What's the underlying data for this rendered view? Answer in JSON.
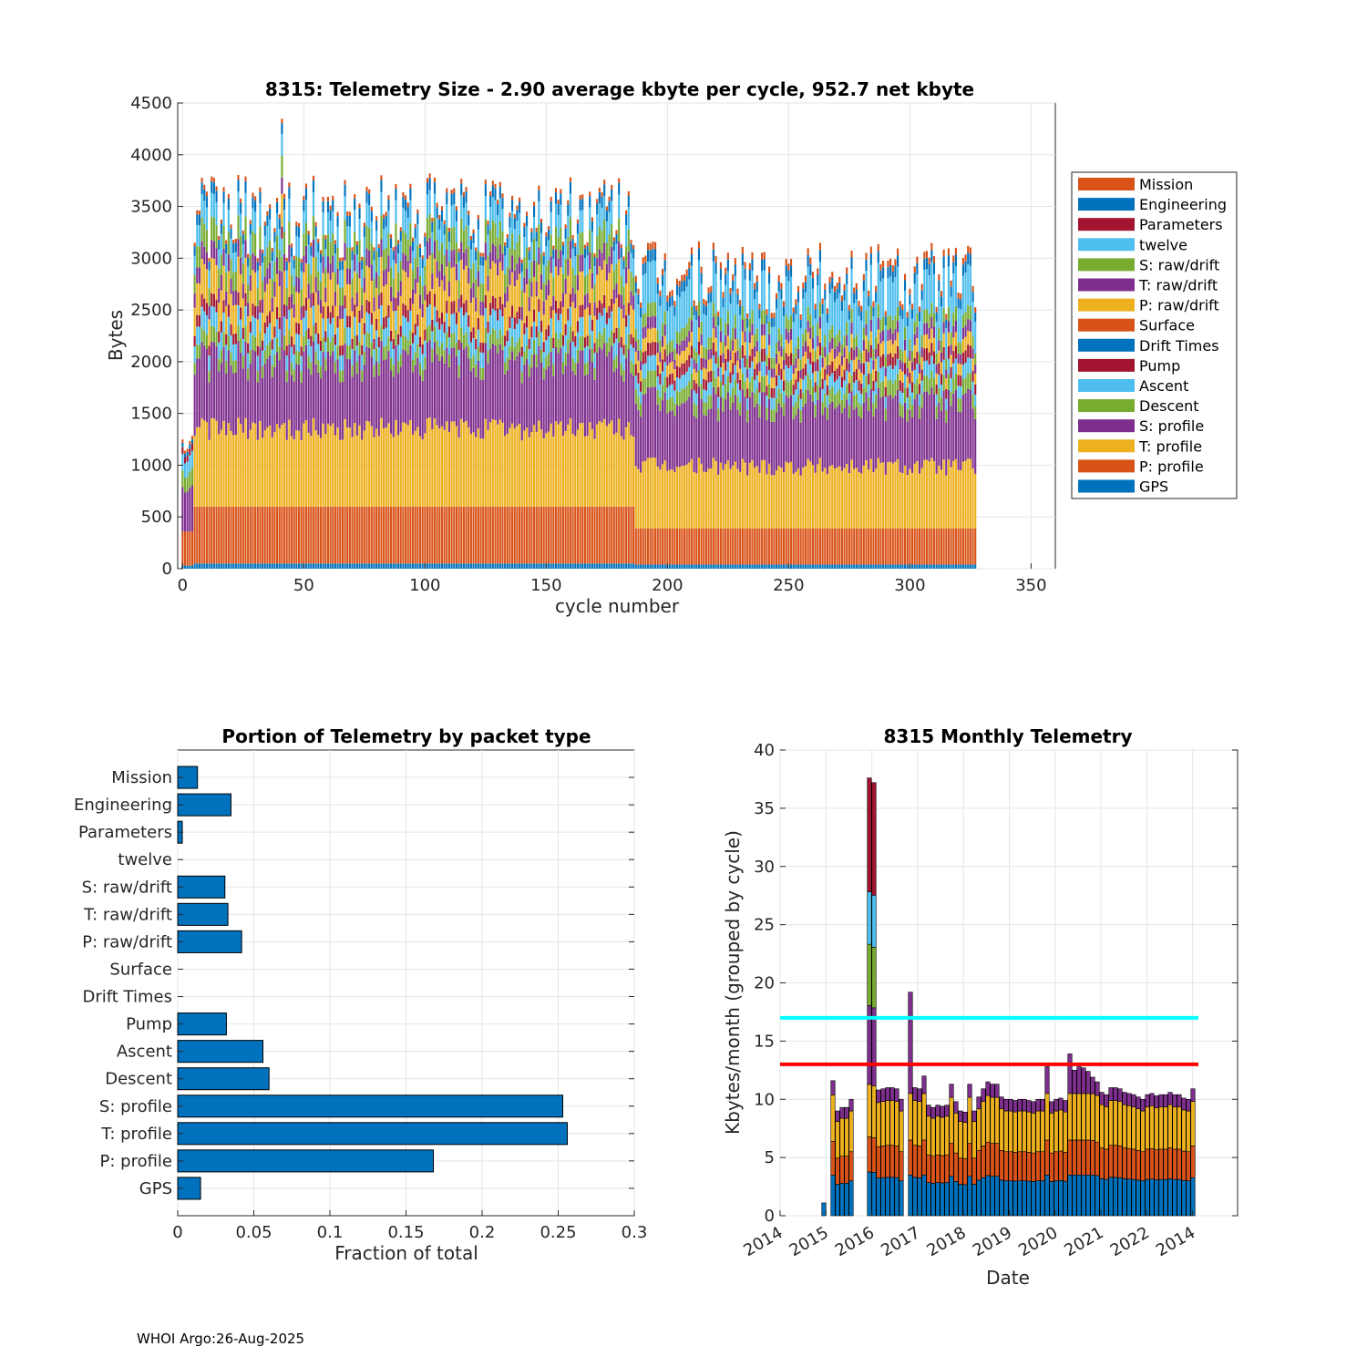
{
  "colors": {
    "Mission": "#D95319",
    "Engineering": "#0072BD",
    "Parameters": "#A2142F",
    "twelve": "#4DBEEE",
    "S: raw/drift": "#77AC30",
    "T: raw/drift": "#7E2F8E",
    "P: raw/drift": "#EDB120",
    "Surface": "#D95319",
    "Drift Times": "#0072BD",
    "Pump": "#A2142F",
    "Ascent": "#4DBEEE",
    "Descent": "#77AC30",
    "S: profile": "#7E2F8E",
    "T: profile": "#EDB120",
    "P: profile": "#D95319",
    "GPS": "#0072BD",
    "cyan_line": "#00FFFF",
    "red_line": "#FF0000",
    "bar_blue": "#0072BD"
  },
  "footer": "WHOI Argo:26-Aug-2025",
  "chart_data": [
    {
      "id": "telemetry-size",
      "type": "bar",
      "stacked": true,
      "title": "8315: Telemetry Size - 2.90 average kbyte per cycle,  952.7 net kbyte",
      "xlabel": "cycle number",
      "ylabel": "Bytes",
      "xlim": [
        -2,
        360
      ],
      "ylim": [
        0,
        4500
      ],
      "xticks": [
        0,
        50,
        100,
        150,
        200,
        250,
        300,
        350
      ],
      "yticks": [
        0,
        500,
        1000,
        1500,
        2000,
        2500,
        3000,
        3500,
        4000,
        4500
      ],
      "grid": true,
      "legend_position": "right",
      "legend": [
        "Mission",
        "Engineering",
        "Parameters",
        "twelve",
        "S: raw/drift",
        "T: raw/drift",
        "P: raw/drift",
        "Surface",
        "Drift Times",
        "Pump",
        "Ascent",
        "Descent",
        "S: profile",
        "T: profile",
        "P: profile",
        "GPS"
      ],
      "cycles": [
        0,
        327
      ],
      "stack_order": [
        "GPS",
        "P: profile",
        "T: profile",
        "S: profile",
        "Descent",
        "Ascent",
        "Pump",
        "P: raw/drift",
        "T: raw/drift",
        "S: raw/drift",
        "twelve",
        "Engineering",
        "Mission"
      ],
      "representative_cycles": [
        {
          "range": [
            0,
            4
          ],
          "GPS": 30,
          "P: profile": 330,
          "T: profile": 0,
          "S: profile": 400,
          "Descent": 150,
          "Ascent": 150,
          "Pump": 60,
          "P: raw/drift": 0,
          "T: raw/drift": 0,
          "S: raw/drift": 0,
          "twelve": 0,
          "Engineering": 40,
          "Mission": 30
        },
        {
          "range": [
            5,
            186
          ],
          "GPS": 50,
          "P: profile": 550,
          "T: profile": 750,
          "S: profile": 650,
          "Descent": 130,
          "Ascent": 170,
          "Pump": 110,
          "P: raw/drift": 300,
          "T: raw/drift": 150,
          "S: raw/drift": 200,
          "twelve": 200,
          "Engineering": 100,
          "Mission": 40
        },
        {
          "range": [
            187,
            327
          ],
          "GPS": 40,
          "P: profile": 350,
          "T: profile": 600,
          "S: profile": 600,
          "Descent": 140,
          "Ascent": 130,
          "Pump": 110,
          "P: raw/drift": 120,
          "T: raw/drift": 100,
          "S: raw/drift": 120,
          "twelve": 350,
          "Engineering": 100,
          "Mission": 60
        }
      ],
      "peak_values": {
        "max_total": 4150,
        "max_cycle": 41
      }
    },
    {
      "id": "portion-by-type",
      "type": "bar",
      "orientation": "horizontal",
      "title": "Portion of Telemetry by packet type",
      "xlabel": "Fraction of total",
      "xlim": [
        0,
        0.3
      ],
      "xticks": [
        0,
        0.05,
        0.1,
        0.15,
        0.2,
        0.25,
        0.3
      ],
      "xtick_labels": [
        "0",
        "0.05",
        "0.1",
        "0.15",
        "0.2",
        "0.25",
        "0.3"
      ],
      "grid": true,
      "categories": [
        "Mission",
        "Engineering",
        "Parameters",
        "twelve",
        "S: raw/drift",
        "T: raw/drift",
        "P: raw/drift",
        "Surface",
        "Drift Times",
        "Pump",
        "Ascent",
        "Descent",
        "S: profile",
        "T: profile",
        "P: profile",
        "GPS"
      ],
      "values": [
        0.013,
        0.035,
        0.003,
        0.0,
        0.031,
        0.033,
        0.042,
        0.0,
        0.0,
        0.032,
        0.056,
        0.06,
        0.253,
        0.256,
        0.168,
        0.015
      ]
    },
    {
      "id": "monthly-telemetry",
      "type": "bar",
      "stacked": true,
      "title": "8315 Monthly Telemetry",
      "xlabel": "Date",
      "ylabel": "Kbytes/month (grouped by cycle)",
      "ylim": [
        0,
        40
      ],
      "yticks": [
        0,
        5,
        10,
        15,
        20,
        25,
        30,
        35,
        40
      ],
      "xtick_labels": [
        "2014",
        "2015",
        "2016",
        "2017",
        "2018",
        "2019",
        "2020",
        "2021",
        "2022",
        "2014"
      ],
      "grid": true,
      "reference_lines": [
        {
          "label": "cyan",
          "y": 17
        },
        {
          "label": "red",
          "y": 13
        }
      ],
      "monthly_totals": [
        1.1,
        0,
        11.6,
        9.0,
        9.3,
        9.3,
        10.0,
        0,
        0,
        0,
        37.6,
        37.2,
        10.8,
        10.9,
        11.0,
        11.0,
        10.9,
        10.0,
        0,
        19.2,
        11.0,
        10.9,
        12.0,
        9.5,
        9.3,
        9.5,
        9.4,
        9.5,
        11.3,
        9.8,
        9.0,
        8.9,
        11.3,
        9.0,
        10.2,
        10.9,
        11.5,
        11.3,
        11.3,
        10.2,
        10.0,
        10.0,
        9.9,
        10.0,
        10.0,
        9.9,
        9.8,
        10.0,
        10.0,
        12.8,
        9.8,
        10.0,
        10.1,
        9.9,
        13.9,
        12.5,
        12.8,
        12.7,
        12.4,
        11.9,
        11.5,
        10.6,
        10.4,
        11.0,
        11.0,
        10.9,
        10.6,
        10.5,
        10.4,
        10.2,
        10.0,
        10.4,
        10.5,
        10.3,
        10.4,
        10.4,
        10.6,
        10.4,
        10.4,
        10.1,
        10.0,
        10.9
      ],
      "month_layers": {
        "GPS+P:profile(blue)": 2.6,
        "T:profile(orange)": 2.4,
        "S:profile(yellow)": 3.5,
        "purple": 2.4
      }
    }
  ]
}
